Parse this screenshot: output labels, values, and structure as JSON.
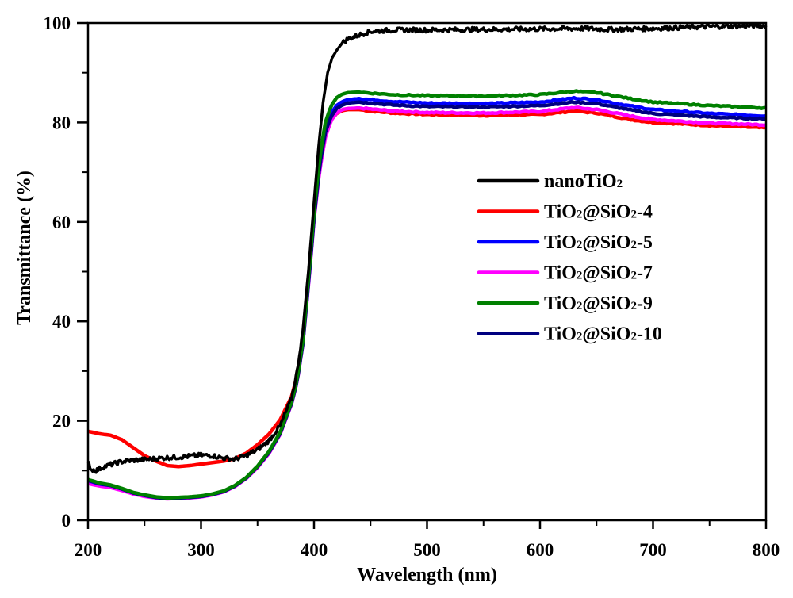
{
  "chart_data": {
    "type": "line",
    "title": "",
    "xlabel": "Wavelength (nm)",
    "ylabel": "Transmittance (%)",
    "xlim": [
      200,
      800
    ],
    "ylim": [
      0,
      100
    ],
    "x_ticks": [
      200,
      300,
      400,
      500,
      600,
      700,
      800
    ],
    "y_ticks": [
      0,
      20,
      40,
      60,
      80,
      100
    ],
    "x_tick_labels": [
      "200",
      "300",
      "400",
      "500",
      "600",
      "700",
      "800"
    ],
    "y_tick_labels": [
      "0",
      "20",
      "40",
      "60",
      "80",
      "100"
    ],
    "grid": false,
    "legend_position": "center-right",
    "series": [
      {
        "name": "nanoTiO2",
        "label_parts": [
          "nanoTiO",
          "2",
          ""
        ],
        "color": "#000000",
        "noisy": true,
        "x": [
          200,
          203,
          207,
          212,
          220,
          230,
          240,
          250,
          260,
          270,
          280,
          290,
          300,
          310,
          320,
          330,
          340,
          350,
          360,
          370,
          380,
          385,
          390,
          395,
          400,
          404,
          408,
          412,
          416,
          420,
          425,
          430,
          440,
          450,
          470,
          500,
          550,
          600,
          640,
          660,
          700,
          750,
          800
        ],
        "y": [
          11.5,
          10.2,
          10.0,
          10.6,
          11.2,
          11.8,
          12.1,
          12.2,
          12.4,
          12.6,
          12.7,
          12.9,
          13.1,
          13.0,
          12.5,
          12.3,
          13.0,
          14.2,
          16.0,
          19.0,
          24.5,
          30.0,
          38.0,
          50.0,
          64.0,
          75.0,
          84.0,
          90.0,
          93.0,
          94.5,
          96.0,
          96.8,
          97.6,
          98.3,
          98.6,
          98.6,
          98.7,
          98.8,
          98.9,
          98.7,
          98.9,
          99.3,
          99.5
        ]
      },
      {
        "name": "TiO2@SiO2-4",
        "label_parts": [
          "TiO",
          "2",
          "@SiO",
          "2",
          "-4"
        ],
        "color": "#ff0000",
        "noisy": false,
        "x": [
          200,
          210,
          220,
          230,
          240,
          250,
          260,
          270,
          280,
          290,
          300,
          310,
          320,
          330,
          340,
          350,
          360,
          370,
          380,
          385,
          390,
          395,
          400,
          405,
          410,
          415,
          420,
          425,
          430,
          440,
          450,
          470,
          500,
          550,
          600,
          630,
          650,
          680,
          700,
          750,
          800
        ],
        "y": [
          17.9,
          17.4,
          17.1,
          16.2,
          14.6,
          13.0,
          11.9,
          11.0,
          10.8,
          11.0,
          11.3,
          11.6,
          11.9,
          12.4,
          13.5,
          15.2,
          17.3,
          20.2,
          24.8,
          29.0,
          36.5,
          48.0,
          61.0,
          71.0,
          77.5,
          80.5,
          81.8,
          82.4,
          82.6,
          82.6,
          82.3,
          81.9,
          81.6,
          81.4,
          81.6,
          82.3,
          81.9,
          80.6,
          80.0,
          79.4,
          78.9
        ]
      },
      {
        "name": "TiO2@SiO2-5",
        "label_parts": [
          "TiO",
          "2",
          "@SiO",
          "2",
          "-5"
        ],
        "color": "#0000ff",
        "noisy": false,
        "x": [
          200,
          210,
          220,
          230,
          240,
          250,
          260,
          270,
          280,
          290,
          300,
          310,
          320,
          330,
          340,
          350,
          360,
          370,
          380,
          385,
          390,
          395,
          400,
          405,
          410,
          415,
          420,
          425,
          430,
          440,
          450,
          470,
          500,
          550,
          600,
          630,
          650,
          680,
          700,
          750,
          800
        ],
        "y": [
          8.0,
          7.3,
          7.0,
          6.3,
          5.5,
          5.0,
          4.6,
          4.4,
          4.5,
          4.6,
          4.8,
          5.2,
          5.8,
          6.9,
          8.5,
          10.8,
          13.6,
          17.5,
          23.5,
          28.0,
          35.5,
          47.5,
          61.0,
          71.5,
          78.5,
          81.8,
          83.4,
          84.2,
          84.6,
          84.8,
          84.6,
          84.2,
          83.9,
          83.8,
          84.1,
          84.9,
          84.6,
          83.3,
          82.6,
          81.8,
          81.3
        ]
      },
      {
        "name": "TiO2@SiO2-7",
        "label_parts": [
          "TiO",
          "2",
          "@SiO",
          "2",
          "-7"
        ],
        "color": "#ff00ff",
        "noisy": false,
        "x": [
          200,
          210,
          220,
          230,
          240,
          250,
          260,
          270,
          280,
          290,
          300,
          310,
          320,
          330,
          340,
          350,
          360,
          370,
          380,
          385,
          390,
          395,
          400,
          405,
          410,
          415,
          420,
          425,
          430,
          440,
          450,
          470,
          500,
          550,
          600,
          630,
          650,
          680,
          700,
          750,
          800
        ],
        "y": [
          7.4,
          6.9,
          6.6,
          6.0,
          5.3,
          4.8,
          4.5,
          4.3,
          4.4,
          4.5,
          4.7,
          5.1,
          5.7,
          6.8,
          8.4,
          10.6,
          13.4,
          17.3,
          23.3,
          27.8,
          35.3,
          47.0,
          60.5,
          70.5,
          77.0,
          80.4,
          81.9,
          82.6,
          82.8,
          82.9,
          82.7,
          82.3,
          82.0,
          81.9,
          82.2,
          83.0,
          82.6,
          81.3,
          80.6,
          79.9,
          79.5
        ]
      },
      {
        "name": "TiO2@SiO2-9",
        "label_parts": [
          "TiO",
          "2",
          "@SiO",
          "2",
          "-9"
        ],
        "color": "#008000",
        "noisy": false,
        "x": [
          200,
          210,
          220,
          230,
          240,
          250,
          260,
          270,
          280,
          290,
          300,
          310,
          320,
          330,
          340,
          350,
          360,
          370,
          380,
          385,
          390,
          395,
          400,
          405,
          410,
          415,
          420,
          425,
          430,
          440,
          450,
          470,
          500,
          550,
          600,
          630,
          650,
          680,
          700,
          750,
          800
        ],
        "y": [
          8.2,
          7.5,
          7.1,
          6.4,
          5.6,
          5.1,
          4.7,
          4.5,
          4.6,
          4.7,
          4.9,
          5.3,
          5.9,
          7.0,
          8.6,
          10.9,
          13.8,
          17.7,
          23.7,
          28.3,
          36.0,
          48.5,
          62.0,
          73.0,
          80.0,
          83.3,
          85.0,
          85.7,
          86.0,
          86.1,
          85.9,
          85.6,
          85.4,
          85.3,
          85.6,
          86.3,
          86.0,
          84.8,
          84.1,
          83.4,
          82.9
        ]
      },
      {
        "name": "TiO2@SiO2-10",
        "label_parts": [
          "TiO",
          "2",
          "@SiO",
          "2",
          "-10"
        ],
        "color": "#000080",
        "noisy": false,
        "x": [
          200,
          210,
          220,
          230,
          240,
          250,
          260,
          270,
          280,
          290,
          300,
          310,
          320,
          330,
          340,
          350,
          360,
          370,
          380,
          385,
          390,
          395,
          400,
          405,
          410,
          415,
          420,
          425,
          430,
          440,
          450,
          470,
          500,
          550,
          600,
          630,
          650,
          680,
          700,
          750,
          800
        ],
        "y": [
          8.1,
          7.4,
          7.0,
          6.3,
          5.5,
          5.0,
          4.6,
          4.4,
          4.5,
          4.6,
          4.8,
          5.2,
          5.8,
          6.9,
          8.5,
          10.8,
          13.6,
          17.5,
          23.5,
          28.0,
          35.5,
          47.5,
          61.0,
          71.5,
          78.0,
          81.2,
          82.8,
          83.5,
          83.9,
          84.1,
          83.9,
          83.5,
          83.2,
          83.1,
          83.4,
          84.1,
          83.8,
          82.5,
          81.8,
          81.1,
          80.7
        ]
      }
    ]
  }
}
